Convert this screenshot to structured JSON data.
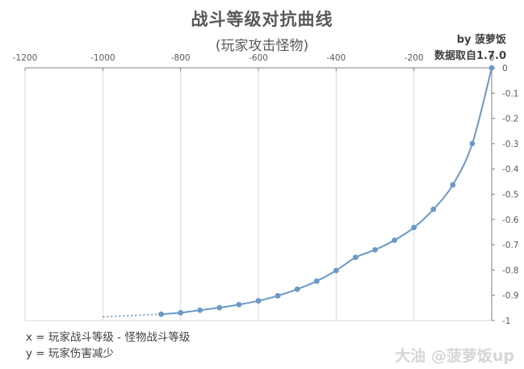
{
  "chart_data": {
    "type": "scatter",
    "title": "战斗等级对抗曲线",
    "subtitle": "(玩家攻击怪物)",
    "credit": [
      "by 菠萝饭",
      "数据取自1.7.0"
    ],
    "notes": [
      "x = 玩家战斗等级 - 怪物战斗等级",
      "y = 玩家伤害减少"
    ],
    "xlim": [
      -1200,
      0
    ],
    "ylim": [
      -1,
      0
    ],
    "x_ticks": [
      -1200,
      -1000,
      -800,
      -600,
      -400,
      -200,
      0
    ],
    "x_tick_labels": [
      "-1200",
      "-1000",
      "-800",
      "-600",
      "-400",
      "-200",
      "0"
    ],
    "y_ticks": [
      0,
      -0.1,
      -0.2,
      -0.3,
      -0.4,
      -0.5,
      -0.6,
      -0.7,
      -0.8,
      -0.9,
      -1
    ],
    "y_tick_labels": [
      "0",
      "-0.1",
      "-0.2",
      "-0.3",
      "-0.4",
      "-0.5",
      "-0.6",
      "-0.7",
      "-0.8",
      "-0.9",
      "-1"
    ],
    "x_axis_position": "top",
    "y_axis_position": "right",
    "grid": "vertical",
    "series": [
      {
        "points": [
          {
            "x": -850,
            "y": -0.975
          },
          {
            "x": -800,
            "y": -0.969
          },
          {
            "x": -750,
            "y": -0.959
          },
          {
            "x": -700,
            "y": -0.949
          },
          {
            "x": -650,
            "y": -0.937
          },
          {
            "x": -600,
            "y": -0.922
          },
          {
            "x": -550,
            "y": -0.902
          },
          {
            "x": -500,
            "y": -0.876
          },
          {
            "x": -450,
            "y": -0.844
          },
          {
            "x": -400,
            "y": -0.802
          },
          {
            "x": -350,
            "y": -0.75
          },
          {
            "x": -300,
            "y": -0.72
          },
          {
            "x": -250,
            "y": -0.682
          },
          {
            "x": -200,
            "y": -0.632
          },
          {
            "x": -150,
            "y": -0.56
          },
          {
            "x": -100,
            "y": -0.463
          },
          {
            "x": -50,
            "y": -0.3
          },
          {
            "x": 0,
            "y": 0
          }
        ],
        "extrapolated": [
          {
            "x": -1000,
            "y": -0.985
          },
          {
            "x": -850,
            "y": -0.975
          }
        ],
        "color": "#6a99c8"
      }
    ]
  },
  "watermark": "大油 @菠萝饭up"
}
